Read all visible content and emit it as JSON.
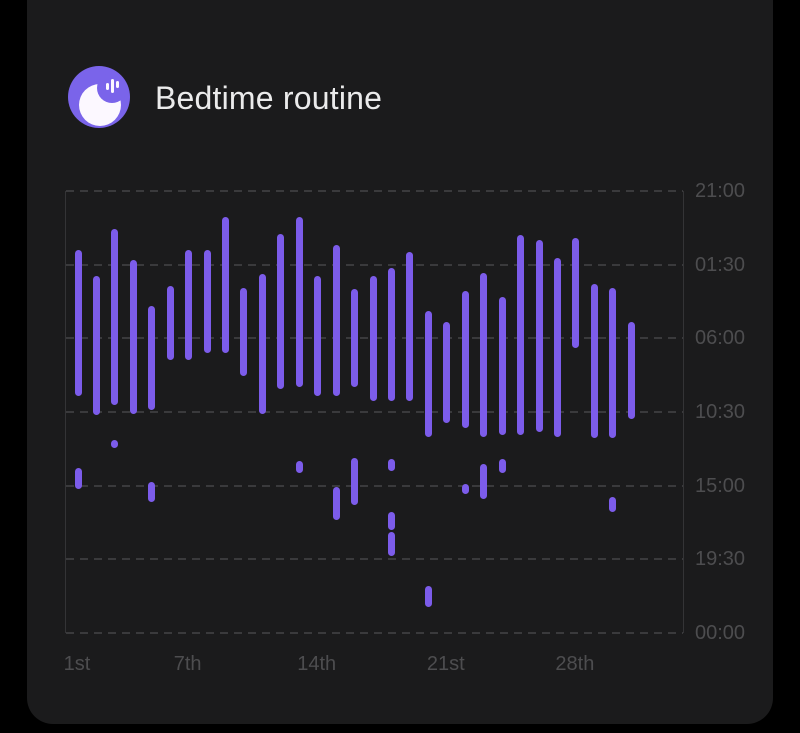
{
  "page": {
    "background": "#000000",
    "card_background": "#1b1b1c"
  },
  "header": {
    "title": "Bedtime routine",
    "icon": "bedtime-moon-icon",
    "icon_bg_color": "#7a64ea",
    "icon_moon_color": "#fcf8ff"
  },
  "chart_data": {
    "type": "range-bar",
    "title": "Bedtime routine",
    "description": "Daily sleep sessions over a 31-day month; each vertical bar spans bedtime to wake-up time, detached short segments are naps",
    "bar_color": "#7c5cea",
    "grid_color": "#3a3a3c",
    "axis_label_color": "#4d4d4f",
    "x_axis": {
      "unit": "day-of-month",
      "days": 31,
      "tick_days": [
        1,
        7,
        14,
        21,
        28
      ],
      "tick_labels": [
        "1st",
        "7th",
        "14th",
        "21st",
        "28th"
      ]
    },
    "y_axis": {
      "unit": "time-of-day",
      "top": "21:00",
      "span_hours": 27,
      "tick_interval_hours": 4.5,
      "tick_labels": [
        "21:00",
        "01:30",
        "06:00",
        "10:30",
        "15:00",
        "19:30",
        "00:00"
      ],
      "grid": "dashed-horizontal"
    },
    "series": [
      {
        "day": 1,
        "segments": [
          {
            "start": "00:35",
            "end": "09:30",
            "start_h": 3.6,
            "end_h": 12.5
          },
          {
            "start": "13:55",
            "end": "15:10",
            "start_h": 16.9,
            "end_h": 18.2
          }
        ]
      },
      {
        "day": 2,
        "segments": [
          {
            "start": "02:10",
            "end": "10:40",
            "start_h": 5.2,
            "end_h": 13.7
          }
        ]
      },
      {
        "day": 3,
        "segments": [
          {
            "start": "23:20",
            "end": "10:05",
            "start_h": 2.3,
            "end_h": 13.1
          },
          {
            "start": "12:10",
            "end": "12:40",
            "start_h": 15.2,
            "end_h": 15.7
          }
        ]
      },
      {
        "day": 4,
        "segments": [
          {
            "start": "01:10",
            "end": "10:35",
            "start_h": 4.2,
            "end_h": 13.6
          }
        ]
      },
      {
        "day": 5,
        "segments": [
          {
            "start": "04:00",
            "end": "10:25",
            "start_h": 7.0,
            "end_h": 13.4
          },
          {
            "start": "14:50",
            "end": "16:00",
            "start_h": 17.8,
            "end_h": 19.0
          }
        ]
      },
      {
        "day": 6,
        "segments": [
          {
            "start": "02:50",
            "end": "07:20",
            "start_h": 5.8,
            "end_h": 10.3
          }
        ]
      },
      {
        "day": 7,
        "segments": [
          {
            "start": "00:35",
            "end": "07:20",
            "start_h": 3.6,
            "end_h": 10.3
          }
        ]
      },
      {
        "day": 8,
        "segments": [
          {
            "start": "00:35",
            "end": "06:55",
            "start_h": 3.6,
            "end_h": 9.9
          }
        ]
      },
      {
        "day": 9,
        "segments": [
          {
            "start": "22:35",
            "end": "06:55",
            "start_h": 1.6,
            "end_h": 9.9
          }
        ]
      },
      {
        "day": 10,
        "segments": [
          {
            "start": "02:55",
            "end": "08:20",
            "start_h": 5.9,
            "end_h": 11.3
          }
        ]
      },
      {
        "day": 11,
        "segments": [
          {
            "start": "02:05",
            "end": "10:35",
            "start_h": 5.1,
            "end_h": 13.6
          }
        ]
      },
      {
        "day": 12,
        "segments": [
          {
            "start": "23:35",
            "end": "09:05",
            "start_h": 2.6,
            "end_h": 12.1
          }
        ]
      },
      {
        "day": 13,
        "segments": [
          {
            "start": "22:35",
            "end": "09:00",
            "start_h": 1.6,
            "end_h": 12.0
          },
          {
            "start": "13:30",
            "end": "14:10",
            "start_h": 16.5,
            "end_h": 17.2
          }
        ]
      },
      {
        "day": 14,
        "segments": [
          {
            "start": "02:10",
            "end": "09:30",
            "start_h": 5.2,
            "end_h": 12.5
          }
        ]
      },
      {
        "day": 15,
        "segments": [
          {
            "start": "00:20",
            "end": "09:30",
            "start_h": 3.3,
            "end_h": 12.5
          },
          {
            "start": "15:05",
            "end": "17:05",
            "start_h": 18.1,
            "end_h": 20.1
          }
        ]
      },
      {
        "day": 16,
        "segments": [
          {
            "start": "03:00",
            "end": "09:00",
            "start_h": 6.0,
            "end_h": 12.0
          },
          {
            "start": "13:20",
            "end": "16:10",
            "start_h": 16.3,
            "end_h": 19.2
          }
        ]
      },
      {
        "day": 17,
        "segments": [
          {
            "start": "02:10",
            "end": "09:50",
            "start_h": 5.2,
            "end_h": 12.8
          }
        ]
      },
      {
        "day": 18,
        "segments": [
          {
            "start": "01:40",
            "end": "09:50",
            "start_h": 4.7,
            "end_h": 12.8
          },
          {
            "start": "13:25",
            "end": "14:05",
            "start_h": 16.4,
            "end_h": 17.1
          },
          {
            "start": "16:35",
            "end": "17:40",
            "start_h": 19.6,
            "end_h": 20.7
          },
          {
            "start": "17:50",
            "end": "19:20",
            "start_h": 20.8,
            "end_h": 22.3
          }
        ]
      },
      {
        "day": 19,
        "segments": [
          {
            "start": "00:40",
            "end": "09:50",
            "start_h": 3.7,
            "end_h": 12.8
          }
        ]
      },
      {
        "day": 20,
        "segments": [
          {
            "start": "04:20",
            "end": "12:00",
            "start_h": 7.3,
            "end_h": 15.0
          },
          {
            "start": "21:05",
            "end": "22:25",
            "start_h": 24.1,
            "end_h": 25.4
          }
        ]
      },
      {
        "day": 21,
        "segments": [
          {
            "start": "05:00",
            "end": "11:10",
            "start_h": 8.0,
            "end_h": 14.2
          }
        ]
      },
      {
        "day": 22,
        "segments": [
          {
            "start": "03:05",
            "end": "11:30",
            "start_h": 6.1,
            "end_h": 14.5
          },
          {
            "start": "14:55",
            "end": "15:30",
            "start_h": 17.9,
            "end_h": 18.5
          }
        ]
      },
      {
        "day": 23,
        "segments": [
          {
            "start": "02:00",
            "end": "12:00",
            "start_h": 5.0,
            "end_h": 15.0
          },
          {
            "start": "13:40",
            "end": "15:50",
            "start_h": 16.7,
            "end_h": 18.8
          }
        ]
      },
      {
        "day": 24,
        "segments": [
          {
            "start": "03:30",
            "end": "11:55",
            "start_h": 6.5,
            "end_h": 14.9
          },
          {
            "start": "13:25",
            "end": "14:10",
            "start_h": 16.4,
            "end_h": 17.2
          }
        ]
      },
      {
        "day": 25,
        "segments": [
          {
            "start": "23:40",
            "end": "11:55",
            "start_h": 2.7,
            "end_h": 14.9
          }
        ]
      },
      {
        "day": 26,
        "segments": [
          {
            "start": "00:00",
            "end": "11:40",
            "start_h": 3.0,
            "end_h": 14.7
          }
        ]
      },
      {
        "day": 27,
        "segments": [
          {
            "start": "01:05",
            "end": "12:00",
            "start_h": 4.1,
            "end_h": 15.0
          }
        ]
      },
      {
        "day": 28,
        "segments": [
          {
            "start": "23:55",
            "end": "06:35",
            "start_h": 2.9,
            "end_h": 9.6
          }
        ]
      },
      {
        "day": 29,
        "segments": [
          {
            "start": "02:40",
            "end": "12:05",
            "start_h": 5.7,
            "end_h": 15.1
          }
        ]
      },
      {
        "day": 30,
        "segments": [
          {
            "start": "02:55",
            "end": "12:05",
            "start_h": 5.9,
            "end_h": 15.1
          },
          {
            "start": "15:40",
            "end": "16:35",
            "start_h": 18.7,
            "end_h": 19.6
          }
        ]
      },
      {
        "day": 31,
        "segments": [
          {
            "start": "05:00",
            "end": "10:55",
            "start_h": 8.0,
            "end_h": 13.9
          }
        ]
      }
    ]
  }
}
